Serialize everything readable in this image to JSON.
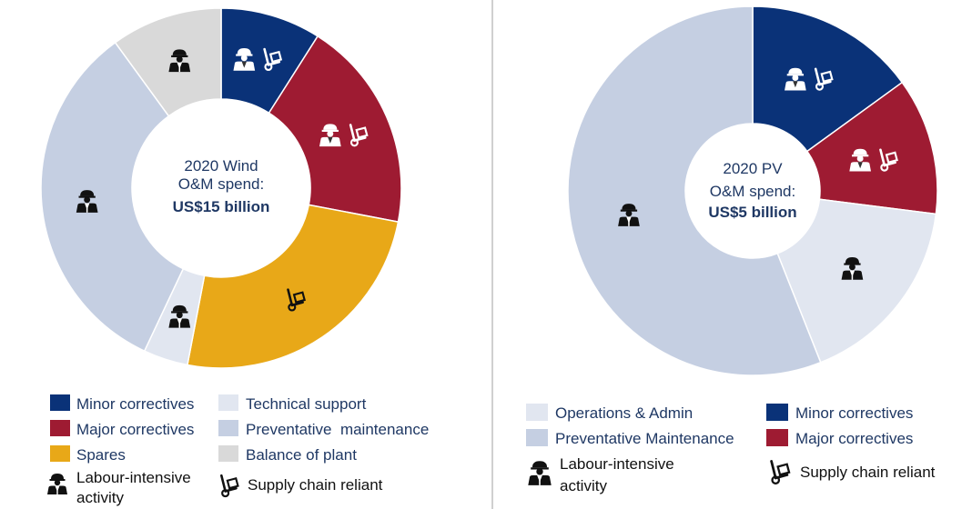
{
  "colors": {
    "minor": "#0a3278",
    "major": "#9e1b32",
    "spares": "#e8a818",
    "technical": "#e1e6f0",
    "preventative": "#c5cfe2",
    "balance": "#d9d9d9",
    "text": "#1f3864",
    "divider": "#a0a0a0"
  },
  "chart_data": [
    {
      "type": "pie",
      "title_lines": [
        "2020 Wind",
        "O&M spend:"
      ],
      "title_bold": "US$15 billion",
      "slices": [
        {
          "label": "Minor correctives",
          "value": 9,
          "color": "#0a3278",
          "icons": [
            "worker",
            "cart"
          ]
        },
        {
          "label": "Major correctives",
          "value": 19,
          "color": "#9e1b32",
          "icons": [
            "worker",
            "cart"
          ]
        },
        {
          "label": "Spares",
          "value": 25,
          "color": "#e8a818",
          "icons": [
            "cart"
          ]
        },
        {
          "label": "Technical support",
          "value": 4,
          "color": "#e1e6f0",
          "icons": [
            "worker"
          ]
        },
        {
          "label": "Preventative maintenance",
          "value": 33,
          "color": "#c5cfe2",
          "icons": [
            "worker"
          ]
        },
        {
          "label": "Balance of plant",
          "value": 10,
          "color": "#d9d9d9",
          "icons": [
            "worker"
          ]
        }
      ],
      "legend": [
        {
          "label": "Minor correctives",
          "color": "#0a3278"
        },
        {
          "label": "Technical support",
          "color": "#e1e6f0"
        },
        {
          "label": "Major correctives",
          "color": "#9e1b32"
        },
        {
          "label": "Preventative  maintenance",
          "color": "#c5cfe2"
        },
        {
          "label": "Spares",
          "color": "#e8a818"
        },
        {
          "label": "Balance of plant",
          "color": "#d9d9d9"
        }
      ],
      "icon_legend": [
        {
          "icon": "worker",
          "lines": [
            "Labour-intensive",
            "activity"
          ]
        },
        {
          "icon": "cart",
          "lines": [
            "Supply chain reliant"
          ]
        }
      ]
    },
    {
      "type": "pie",
      "title_lines": [
        "2020 PV",
        "O&M spend:"
      ],
      "title_bold": "US$5 billion",
      "slices": [
        {
          "label": "Minor correctives",
          "value": 15,
          "color": "#0a3278",
          "icons": [
            "worker",
            "cart"
          ]
        },
        {
          "label": "Major correctives",
          "value": 12,
          "color": "#9e1b32",
          "icons": [
            "worker",
            "cart"
          ]
        },
        {
          "label": "Operations & Admin",
          "value": 17,
          "color": "#e1e6f0",
          "icons": [
            "worker"
          ]
        },
        {
          "label": "Preventative Maintenance",
          "value": 56,
          "color": "#c5cfe2",
          "icons": [
            "worker"
          ]
        }
      ],
      "legend": [
        {
          "label": "Operations & Admin",
          "color": "#e1e6f0"
        },
        {
          "label": "Minor correctives",
          "color": "#0a3278"
        },
        {
          "label": "Preventative Maintenance",
          "color": "#c5cfe2"
        },
        {
          "label": "Major correctives",
          "color": "#9e1b32"
        }
      ],
      "icon_legend": [
        {
          "icon": "worker",
          "lines": [
            "Labour-intensive",
            "activity"
          ]
        },
        {
          "icon": "cart",
          "lines": [
            "Supply chain reliant"
          ]
        }
      ]
    }
  ]
}
